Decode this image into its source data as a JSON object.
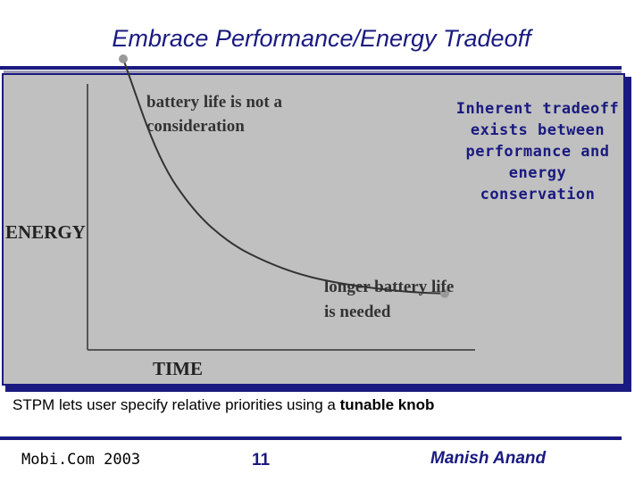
{
  "slide": {
    "title": "Embrace Performance/Energy Tradeoff",
    "note": "Inherent tradeoff\nexists between\nperformance and\nenergy\nconservation",
    "caption_prefix": "STPM lets user specify relative priorities using a ",
    "caption_emphasis": "tunable knob"
  },
  "footer": {
    "conference": "Mobi.Com 2003",
    "page_number": "11",
    "author": "Manish Anand"
  },
  "colors": {
    "title": "#1a1a80",
    "panel": "#c0c0c0",
    "curve": "#333333",
    "endpoint": "#999999"
  },
  "chart_data": {
    "type": "line",
    "xlabel": "TIME",
    "ylabel": "ENERGY",
    "grid": false,
    "legend": "none",
    "axis_ticks": false,
    "series": [
      {
        "x": [
          0.1,
          0.2,
          0.3,
          0.4,
          0.5,
          0.6,
          0.7,
          0.8,
          0.9,
          1.0
        ],
        "y": [
          1.0,
          0.61,
          0.41,
          0.29,
          0.22,
          0.17,
          0.14,
          0.12,
          0.105,
          0.1
        ]
      }
    ],
    "annotations": [
      {
        "at": "start",
        "lines": [
          "battery life is not a",
          "consideration"
        ]
      },
      {
        "at": "end",
        "lines": [
          "longer battery life",
          "is needed"
        ]
      }
    ]
  }
}
